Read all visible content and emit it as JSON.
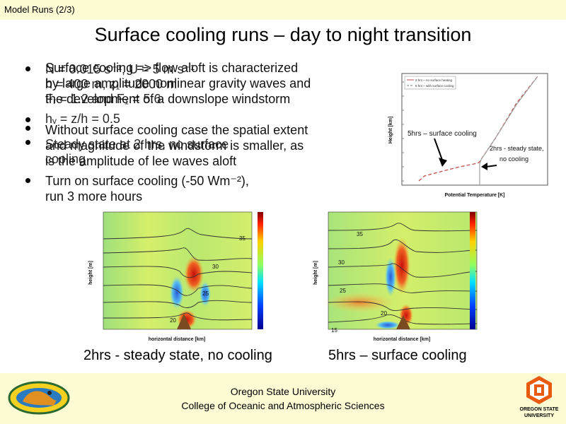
{
  "header": {
    "title": "Model Runs (2/3)"
  },
  "slide": {
    "title": "Surface cooling runs – day to night transition"
  },
  "overlay_text": {
    "lines": [
      "N = 0.015 s⁻¹, U = 5 m s⁻¹",
      "h = 400 m, z₁ = 2000 m",
      "Fᵣ = 1.2 and F₁ = 5.6",
      "hᵥ = z/h = 0.5",
      "Steady state at 2 hrs, no surface",
      "cooling"
    ]
  },
  "bullets": [
    {
      "lines": [
        "Surface cooling => flow aloft is characterized",
        "by large amplitude nonlinear gravity waves and",
        "the development of a downslope windstorm"
      ]
    },
    {
      "lines": [
        "Without surface cooling case the spatial extent",
        "and magnitude of the windstorm is smaller, as",
        "is the amplitude of lee waves aloft"
      ]
    },
    {
      "lines": [
        "Turn on surface cooling (-50 Wm⁻²),",
        "run 3 more hours"
      ]
    }
  ],
  "inset_chart": {
    "legend": [
      "2 hrs – no surface heating",
      "5 hrs – with surface cooling"
    ],
    "annotation_5hr": "5hrs – surface cooling",
    "annotation_2hr_1": "2hrs - steady state,",
    "annotation_2hr_2": "no cooling",
    "xlabel": "Potential Temperature [K]",
    "ylabel": "Height [km]",
    "colors": {
      "solid": "#c0504d",
      "dashed": "#7f7f7f"
    }
  },
  "left_plot": {
    "ylabel": "height [m]",
    "xlabel": "horizontal distance [km]",
    "contour_labels": [
      "35",
      "30",
      "25",
      "20"
    ],
    "caption": "2hrs - steady state, no cooling"
  },
  "right_plot": {
    "ylabel": "height [m]",
    "xlabel": "horizontal distance [km]",
    "contour_labels": [
      "35",
      "30",
      "25",
      "20",
      "15"
    ],
    "caption": "5hrs – surface cooling"
  },
  "footer": {
    "line1": "Oregon State University",
    "line2": "College of Oceanic and Atmospheric Sciences",
    "osu_line1": "OREGON STATE",
    "osu_line2": "UNIVERSITY"
  }
}
